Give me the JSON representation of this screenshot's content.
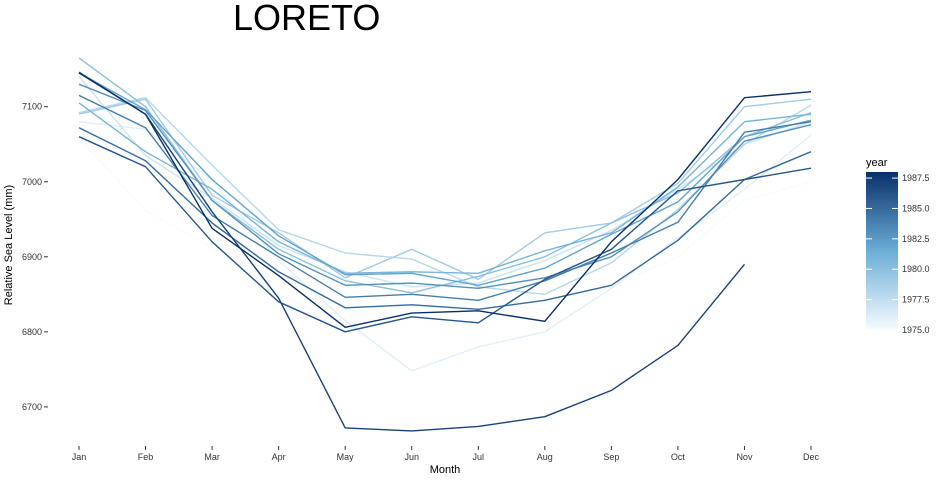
{
  "chart_data": {
    "type": "line",
    "title": "LORETO",
    "xlabel": "Month",
    "ylabel": "Relative Sea Level (mm)",
    "categories": [
      "Jan",
      "Feb",
      "Mar",
      "Apr",
      "May",
      "Jun",
      "Jul",
      "Aug",
      "Sep",
      "Oct",
      "Nov",
      "Dec"
    ],
    "yticks": [
      6700,
      6800,
      6900,
      7000,
      7100
    ],
    "ylim": [
      6655,
      7175
    ],
    "grid": false,
    "legend": {
      "title": "year",
      "position": "right",
      "type": "colorbar",
      "range": [
        1975,
        1988
      ],
      "ticks": [
        "1975.0",
        "1977.5",
        "1980.0",
        "1982.5",
        "1985.0",
        "1987.5"
      ],
      "tick_values": [
        1975,
        1977.5,
        1980,
        1982.5,
        1985,
        1987.5
      ],
      "color_low": "#f7fbff",
      "color_high": "#08306b"
    },
    "series": [
      {
        "year": 1975,
        "values": [
          7058,
          6962,
          6912,
          6850,
          6808,
          6828,
          6840,
          6830,
          6860,
          6900,
          6975,
          7000
        ]
      },
      {
        "year": 1976,
        "values": [
          7080,
          7070,
          7002,
          6895,
          6815,
          6748,
          6780,
          6800,
          6858,
          6925,
          6990,
          7062
        ]
      },
      {
        "year": 1977,
        "values": [
          7140,
          7035,
          6978,
          6915,
          6880,
          6860,
          6865,
          6895,
          6935,
          6990,
          7050,
          7080
        ]
      },
      {
        "year": 1978,
        "values": [
          7092,
          7112,
          7022,
          6936,
          6905,
          6897,
          6860,
          6850,
          6892,
          6963,
          7050,
          7102
        ]
      },
      {
        "year": 1979,
        "values": [
          7090,
          7110,
          6982,
          6932,
          6872,
          6910,
          6870,
          6932,
          6945,
          6998,
          7100,
          7110
        ]
      },
      {
        "year": 1980,
        "values": [
          7165,
          7100,
          6975,
          6910,
          6868,
          6852,
          6874,
          6900,
          6945,
          6985,
          7060,
          7092
        ]
      },
      {
        "year": 1981,
        "values": [
          7105,
          7040,
          6990,
          6920,
          6878,
          6880,
          6878,
          6908,
          6932,
          6993,
          7080,
          7090
        ]
      },
      {
        "year": 1982,
        "values": [
          7145,
          7096,
          7003,
          6928,
          6876,
          6878,
          6862,
          6885,
          6930,
          6973,
          7060,
          7082
        ]
      },
      {
        "year": 1983,
        "values": [
          7130,
          7095,
          6975,
          6904,
          6862,
          6865,
          6858,
          6872,
          6900,
          6960,
          7054,
          7076
        ]
      },
      {
        "year": 1984,
        "values": [
          7115,
          7072,
          6955,
          6900,
          6846,
          6850,
          6842,
          6868,
          6905,
          6946,
          7066,
          7080
        ]
      },
      {
        "year": 1985,
        "values": [
          7072,
          7028,
          6945,
          6880,
          6832,
          6836,
          6830,
          6842,
          6862,
          6922,
          7003,
          7040
        ]
      },
      {
        "year": 1986,
        "values": [
          7060,
          7020,
          6920,
          6840,
          6800,
          6820,
          6812,
          6870,
          6910,
          6988,
          7003,
          7018
        ]
      },
      {
        "year": 1987,
        "values": [
          7146,
          7090,
          6960,
          6845,
          6672,
          6668,
          6674,
          6687,
          6722,
          6782,
          6890,
          null
        ]
      },
      {
        "year": 1988,
        "values": [
          7145,
          7090,
          6938,
          6875,
          6806,
          6825,
          6828,
          6814,
          6920,
          7003,
          7112,
          7120
        ]
      }
    ]
  }
}
